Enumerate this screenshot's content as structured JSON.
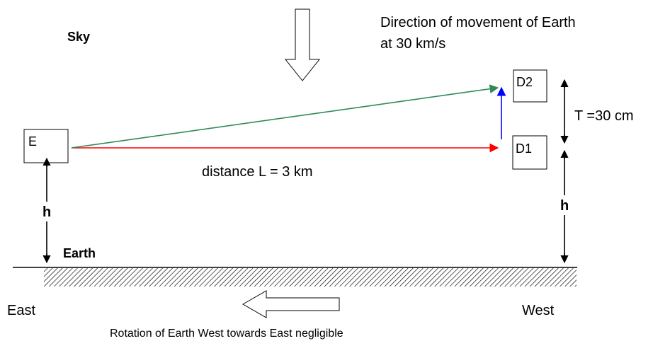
{
  "labels": {
    "sky": "Sky",
    "movement_line1": "Direction of movement of Earth",
    "movement_line2": "at 30 km/s",
    "emitter": "E",
    "detector_top": "D2",
    "detector_bottom": "D1",
    "separation": "T =30 cm",
    "distance": "distance L = 3 km",
    "height_left": "h",
    "height_right": "h",
    "earth": "Earth",
    "east": "East",
    "west": "West",
    "rotation": "Rotation of Earth  West towards East negligible"
  },
  "colors": {
    "red_beam": "#ff0000",
    "green_beam": "#2e8b57",
    "blue_arrow": "#0000ff",
    "black": "#000000"
  },
  "icons": {
    "movement_arrow": "hollow-down-arrow-icon",
    "rotation_arrow": "hollow-left-arrow-icon"
  }
}
